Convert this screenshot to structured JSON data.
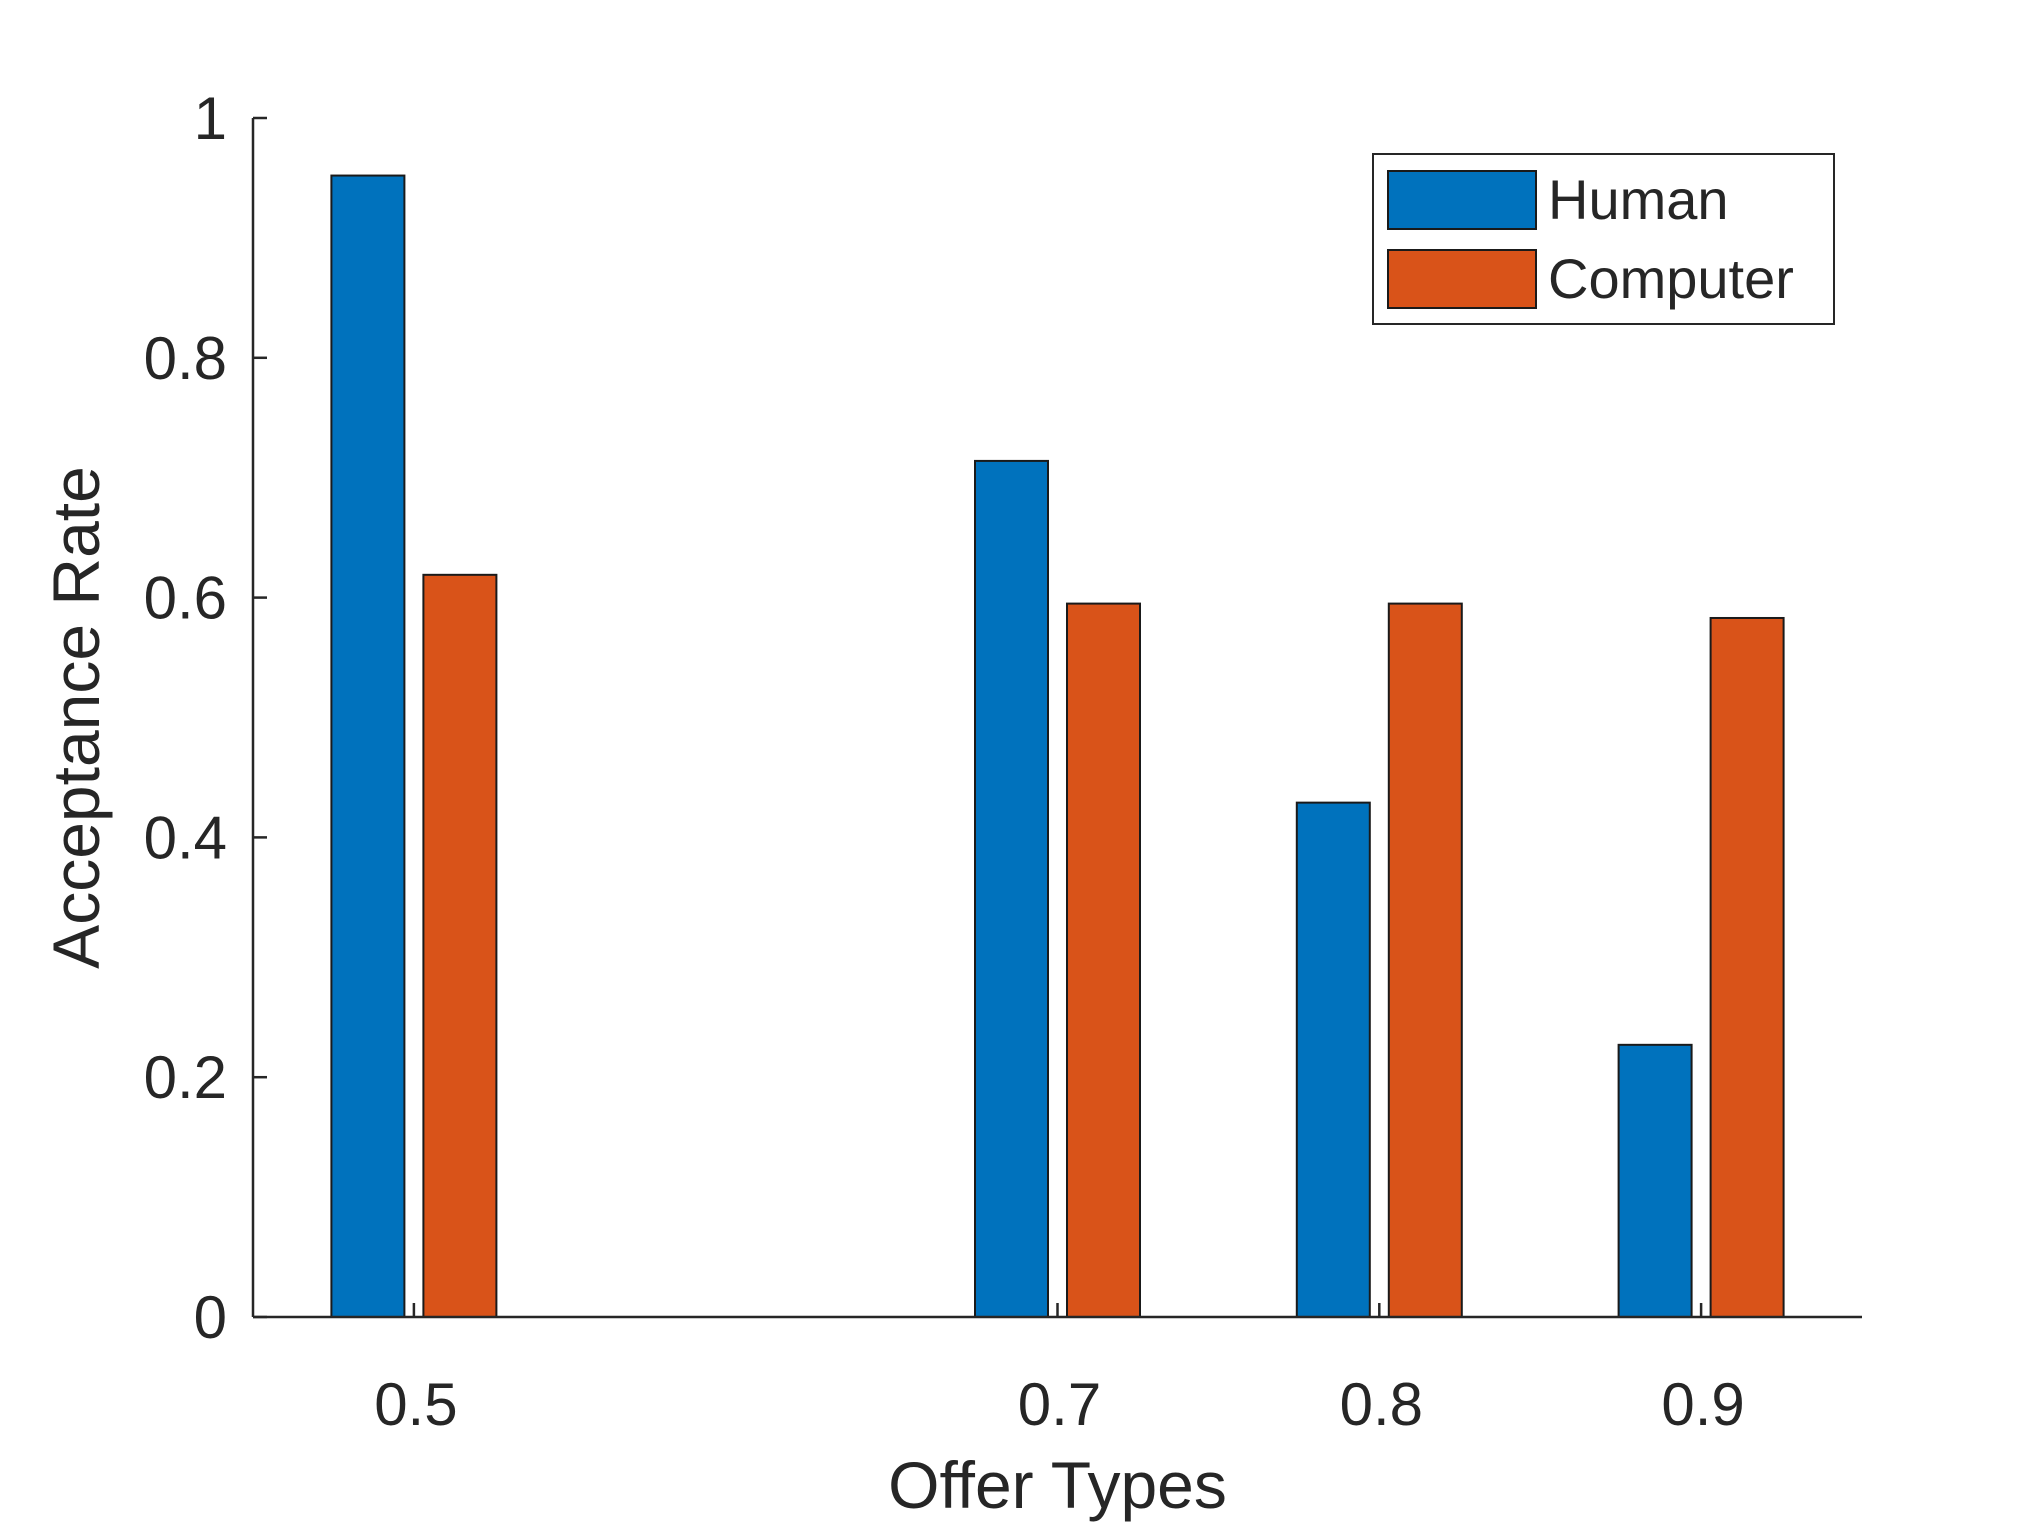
{
  "chart_data": {
    "type": "bar",
    "title": "",
    "xlabel": "Offer Types",
    "ylabel": "Acceptance Rate",
    "x": [
      0.5,
      0.7,
      0.8,
      0.9
    ],
    "categories": [
      "0.5",
      "0.7",
      "0.8",
      "0.9"
    ],
    "xlim": [
      0.45,
      0.95
    ],
    "ylim": [
      0,
      1
    ],
    "yticks": [
      0,
      0.2,
      0.4,
      0.6,
      0.8,
      1
    ],
    "ytick_labels": [
      "0",
      "0.2",
      "0.4",
      "0.6",
      "0.8",
      "1"
    ],
    "series": [
      {
        "name": "Human",
        "values": [
          0.952,
          0.714,
          0.429,
          0.227
        ],
        "color": "#0072BD"
      },
      {
        "name": "Computer",
        "values": [
          0.619,
          0.595,
          0.595,
          0.583
        ],
        "color": "#D95319"
      }
    ],
    "legend": {
      "position": "top-right"
    },
    "grid": false
  }
}
